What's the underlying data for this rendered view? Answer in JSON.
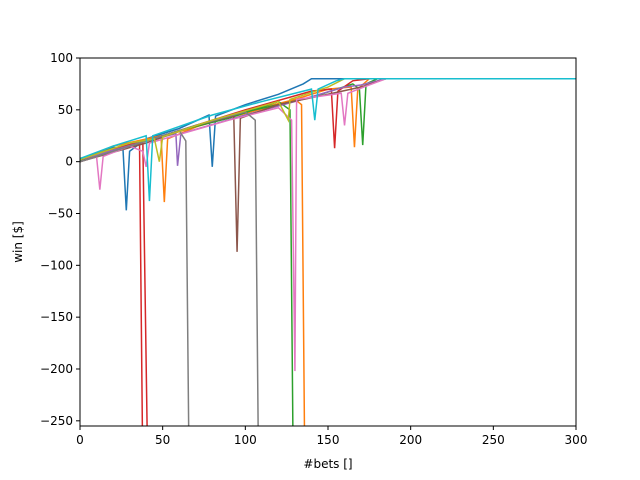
{
  "chart_data": {
    "type": "line",
    "title": "",
    "xlabel": "#bets []",
    "ylabel": "win [$]",
    "xlim": [
      0,
      300
    ],
    "ylim": [
      -255,
      100
    ],
    "xticks": [
      0,
      50,
      100,
      150,
      200,
      250,
      300
    ],
    "yticks": [
      -250,
      -200,
      -150,
      -100,
      -50,
      0,
      50,
      100
    ],
    "grid": false,
    "series": [
      {
        "color": "#1f77b4",
        "points": [
          [
            0,
            0
          ],
          [
            10,
            8
          ],
          [
            20,
            14
          ],
          [
            26,
            12
          ],
          [
            28,
            -47
          ],
          [
            30,
            10
          ],
          [
            40,
            22
          ],
          [
            60,
            32
          ],
          [
            78,
            45
          ],
          [
            80,
            -5
          ],
          [
            82,
            44
          ],
          [
            100,
            55
          ],
          [
            120,
            65
          ],
          [
            135,
            75
          ],
          [
            140,
            80
          ],
          [
            300,
            80
          ]
        ]
      },
      {
        "color": "#ff7f0e",
        "points": [
          [
            0,
            2
          ],
          [
            20,
            15
          ],
          [
            49,
            25
          ],
          [
            51,
            -39
          ],
          [
            53,
            22
          ],
          [
            80,
            40
          ],
          [
            110,
            52
          ],
          [
            130,
            60
          ],
          [
            134,
            55
          ],
          [
            136,
            -300
          ]
        ]
      },
      {
        "color": "#ff7f0e",
        "points": [
          [
            0,
            0
          ],
          [
            40,
            20
          ],
          [
            80,
            38
          ],
          [
            120,
            55
          ],
          [
            150,
            70
          ],
          [
            164,
            72
          ],
          [
            166,
            14
          ],
          [
            168,
            70
          ],
          [
            175,
            80
          ],
          [
            300,
            80
          ]
        ]
      },
      {
        "color": "#2ca02c",
        "points": [
          [
            0,
            1
          ],
          [
            30,
            15
          ],
          [
            60,
            30
          ],
          [
            90,
            42
          ],
          [
            120,
            58
          ],
          [
            127,
            50
          ],
          [
            129,
            -300
          ]
        ]
      },
      {
        "color": "#2ca02c",
        "points": [
          [
            0,
            0
          ],
          [
            50,
            25
          ],
          [
            100,
            48
          ],
          [
            140,
            62
          ],
          [
            165,
            75
          ],
          [
            169,
            70
          ],
          [
            171,
            16
          ],
          [
            173,
            75
          ],
          [
            180,
            80
          ],
          [
            300,
            80
          ]
        ]
      },
      {
        "color": "#d62728",
        "points": [
          [
            0,
            3
          ],
          [
            20,
            12
          ],
          [
            36,
            18
          ],
          [
            38,
            -300
          ]
        ]
      },
      {
        "color": "#d62728",
        "points": [
          [
            0,
            0
          ],
          [
            20,
            12
          ],
          [
            38,
            20
          ],
          [
            41,
            -300
          ]
        ]
      },
      {
        "color": "#d62728",
        "points": [
          [
            0,
            0
          ],
          [
            50,
            25
          ],
          [
            100,
            50
          ],
          [
            140,
            68
          ],
          [
            152,
            70
          ],
          [
            154,
            13
          ],
          [
            156,
            68
          ],
          [
            165,
            78
          ],
          [
            175,
            80
          ],
          [
            300,
            80
          ]
        ]
      },
      {
        "color": "#9467bd",
        "points": [
          [
            0,
            2
          ],
          [
            40,
            20
          ],
          [
            58,
            27
          ],
          [
            59,
            -4
          ],
          [
            61,
            27
          ],
          [
            100,
            45
          ],
          [
            130,
            58
          ],
          [
            160,
            72
          ],
          [
            170,
            74
          ],
          [
            180,
            78
          ],
          [
            185,
            80
          ],
          [
            300,
            80
          ]
        ]
      },
      {
        "color": "#8c564b",
        "points": [
          [
            0,
            0
          ],
          [
            40,
            18
          ],
          [
            70,
            35
          ],
          [
            93,
            44
          ],
          [
            95,
            -87
          ],
          [
            97,
            42
          ],
          [
            120,
            55
          ],
          [
            150,
            65
          ],
          [
            170,
            72
          ],
          [
            185,
            80
          ],
          [
            300,
            80
          ]
        ]
      },
      {
        "color": "#e377c2",
        "points": [
          [
            0,
            0
          ],
          [
            10,
            5
          ],
          [
            12,
            -27
          ],
          [
            14,
            5
          ],
          [
            30,
            15
          ],
          [
            38,
            10
          ],
          [
            40,
            -5
          ],
          [
            42,
            18
          ],
          [
            90,
            40
          ],
          [
            120,
            52
          ],
          [
            128,
            40
          ],
          [
            130,
            -202
          ],
          [
            131,
            60
          ],
          [
            158,
            66
          ],
          [
            160,
            35
          ],
          [
            162,
            66
          ],
          [
            175,
            74
          ],
          [
            185,
            80
          ],
          [
            300,
            80
          ]
        ]
      },
      {
        "color": "#7f7f7f",
        "points": [
          [
            0,
            0
          ],
          [
            30,
            15
          ],
          [
            60,
            30
          ],
          [
            64,
            20
          ],
          [
            66,
            -300
          ]
        ]
      },
      {
        "color": "#7f7f7f",
        "points": [
          [
            0,
            0
          ],
          [
            40,
            20
          ],
          [
            70,
            35
          ],
          [
            100,
            48
          ],
          [
            106,
            40
          ],
          [
            108,
            -300
          ]
        ]
      },
      {
        "color": "#bcbd22",
        "points": [
          [
            0,
            2
          ],
          [
            30,
            18
          ],
          [
            45,
            22
          ],
          [
            48,
            0
          ],
          [
            50,
            24
          ],
          [
            80,
            40
          ],
          [
            120,
            58
          ],
          [
            126,
            40
          ],
          [
            127,
            60
          ],
          [
            150,
            72
          ],
          [
            160,
            80
          ],
          [
            300,
            80
          ]
        ]
      },
      {
        "color": "#17becf",
        "points": [
          [
            0,
            3
          ],
          [
            20,
            15
          ],
          [
            40,
            25
          ],
          [
            42,
            -38
          ],
          [
            44,
            25
          ],
          [
            80,
            45
          ],
          [
            110,
            58
          ],
          [
            140,
            70
          ],
          [
            142,
            40
          ],
          [
            144,
            70
          ],
          [
            155,
            78
          ],
          [
            160,
            80
          ],
          [
            300,
            80
          ]
        ]
      }
    ]
  }
}
